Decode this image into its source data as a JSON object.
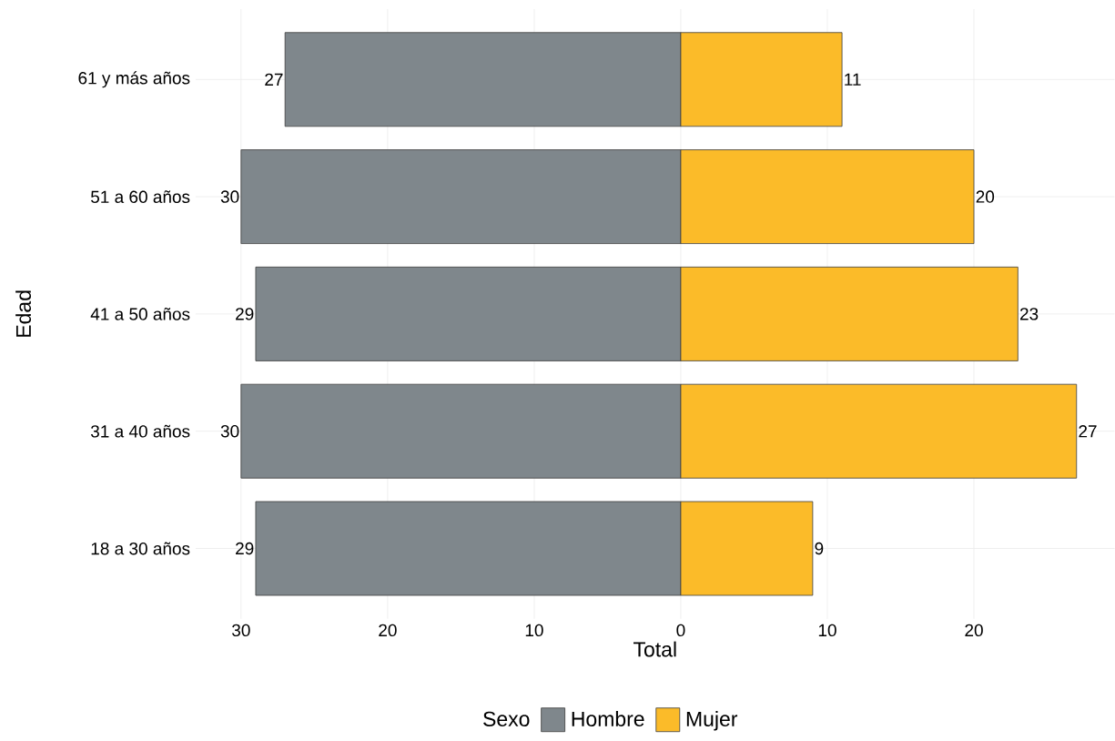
{
  "chart_data": {
    "type": "bar",
    "orientation": "horizontal",
    "xlabel": "Total",
    "ylabel": "Edad",
    "legend_title": "Sexo",
    "legend": "bottom",
    "grid": true,
    "categories": [
      "61 y más años",
      "51 a 60 años",
      "41 a 50 años",
      "31 a 40 años",
      "18 a 30 años"
    ],
    "series": [
      {
        "name": "Hombre",
        "color": "#7f878c",
        "base": [
          -27,
          -30,
          -29,
          -30,
          -29
        ],
        "values": [
          27,
          30,
          29,
          30,
          29
        ],
        "value_labels": [
          "27",
          "30",
          "29",
          "30",
          "29"
        ]
      },
      {
        "name": "Mujer",
        "color": "#fbbb29",
        "values": [
          11,
          20,
          23,
          27,
          9
        ],
        "value_labels": [
          "11",
          "20",
          "23",
          "27",
          "9"
        ]
      }
    ],
    "xlim": [
      -33.1,
      29.6
    ],
    "xticks": [
      {
        "value": -30,
        "label": "30"
      },
      {
        "value": -20,
        "label": "20"
      },
      {
        "value": -10,
        "label": "10"
      },
      0,
      10,
      20
    ]
  }
}
